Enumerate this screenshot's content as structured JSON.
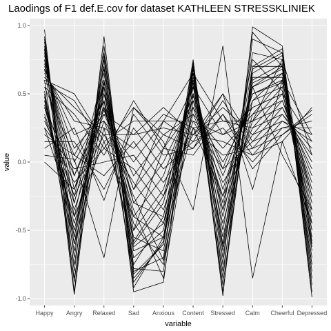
{
  "chart_data": {
    "type": "line",
    "title": "Laodings of F1 def.E.cov for dataset KATHLEEN STRESSKLINIEK",
    "xlabel": "variable",
    "ylabel": "value",
    "categories": [
      "Happy",
      "Angry",
      "Relaxed",
      "Sad",
      "Anxious",
      "Content",
      "Stressed",
      "Calm",
      "Cheerful",
      "Depressed"
    ],
    "ylim": [
      -1.05,
      1.05
    ],
    "yticks": [
      -1.0,
      -0.5,
      0.0,
      0.5,
      1.0
    ],
    "ytick_labels": [
      "-1.0",
      "-0.5",
      "0.0",
      "0.5",
      "1.0"
    ],
    "grid": true,
    "background": "#ebebeb",
    "line_color": "#000000",
    "series": [
      {
        "values": [
          0.97,
          -0.95,
          0.92,
          -0.92,
          -0.55,
          0.75,
          -0.98,
          0.99,
          0.85,
          -0.99
        ]
      },
      {
        "values": [
          0.92,
          -0.8,
          0.85,
          -0.85,
          -0.6,
          0.7,
          -0.85,
          0.9,
          0.8,
          -0.9
        ]
      },
      {
        "values": [
          0.88,
          -0.7,
          0.78,
          -0.8,
          -0.7,
          0.68,
          -0.6,
          0.8,
          0.75,
          -0.8
        ]
      },
      {
        "values": [
          0.85,
          -0.55,
          0.7,
          -0.75,
          -0.4,
          0.65,
          -0.5,
          0.7,
          0.7,
          -0.75
        ]
      },
      {
        "values": [
          0.82,
          -0.4,
          0.6,
          -0.6,
          -0.3,
          0.6,
          -0.4,
          0.6,
          0.72,
          -0.65
        ]
      },
      {
        "values": [
          0.8,
          -0.3,
          0.55,
          -0.5,
          -0.2,
          0.55,
          -0.3,
          0.55,
          0.65,
          -0.55
        ]
      },
      {
        "values": [
          0.78,
          -0.2,
          0.5,
          -0.4,
          -0.1,
          0.5,
          -0.2,
          0.5,
          0.6,
          -0.45
        ]
      },
      {
        "values": [
          0.75,
          -0.1,
          0.45,
          -0.3,
          0.0,
          0.45,
          -0.1,
          0.45,
          0.55,
          -0.35
        ]
      },
      {
        "values": [
          0.72,
          0.0,
          0.4,
          -0.2,
          0.1,
          0.4,
          0.0,
          0.4,
          0.5,
          -0.25
        ]
      },
      {
        "values": [
          0.7,
          0.1,
          0.35,
          -0.1,
          0.2,
          0.35,
          0.1,
          0.35,
          0.45,
          -0.15
        ]
      },
      {
        "values": [
          0.68,
          0.2,
          0.3,
          0.0,
          0.3,
          0.3,
          0.2,
          0.3,
          0.4,
          -0.05
        ]
      },
      {
        "values": [
          0.65,
          0.3,
          0.25,
          0.1,
          0.35,
          0.25,
          0.3,
          0.25,
          0.35,
          0.05
        ]
      },
      {
        "values": [
          0.62,
          0.4,
          0.2,
          0.2,
          0.4,
          0.2,
          0.4,
          0.2,
          0.3,
          0.15
        ]
      },
      {
        "values": [
          0.6,
          0.5,
          0.15,
          0.3,
          0.3,
          0.15,
          0.5,
          0.15,
          0.25,
          0.25
        ]
      },
      {
        "values": [
          0.58,
          0.45,
          0.1,
          0.4,
          0.2,
          0.1,
          0.45,
          0.1,
          0.2,
          0.35
        ]
      },
      {
        "values": [
          0.55,
          0.35,
          0.05,
          0.45,
          0.1,
          0.05,
          0.35,
          0.05,
          0.15,
          0.4
        ]
      },
      {
        "values": [
          0.52,
          -0.6,
          0.65,
          -0.7,
          -0.5,
          0.72,
          -0.7,
          0.65,
          0.78,
          -0.6
        ]
      },
      {
        "values": [
          0.5,
          -0.65,
          0.6,
          -0.65,
          -0.55,
          0.6,
          -0.65,
          0.55,
          0.7,
          -0.7
        ]
      },
      {
        "values": [
          0.48,
          -0.75,
          0.55,
          -0.55,
          -0.65,
          0.55,
          -0.55,
          0.45,
          0.65,
          -0.5
        ]
      },
      {
        "values": [
          0.45,
          -0.5,
          0.5,
          -0.45,
          -0.75,
          0.5,
          -0.45,
          0.35,
          0.6,
          -0.4
        ]
      },
      {
        "values": [
          0.42,
          -0.45,
          0.4,
          -0.35,
          -0.85,
          0.45,
          -0.35,
          0.3,
          0.55,
          -0.3
        ]
      },
      {
        "values": [
          0.4,
          -0.35,
          0.3,
          -0.25,
          -0.72,
          0.4,
          -0.25,
          0.25,
          0.5,
          -0.2
        ]
      },
      {
        "values": [
          0.35,
          -0.25,
          0.2,
          -0.15,
          -0.45,
          0.35,
          -0.15,
          0.2,
          0.45,
          -0.1
        ]
      },
      {
        "values": [
          0.3,
          -0.15,
          0.1,
          -0.05,
          -0.35,
          0.3,
          -0.05,
          0.15,
          0.4,
          0.0
        ]
      },
      {
        "values": [
          0.25,
          -0.05,
          0.0,
          0.05,
          -0.25,
          0.25,
          0.05,
          0.1,
          0.35,
          0.1
        ]
      },
      {
        "values": [
          0.2,
          0.05,
          -0.1,
          0.15,
          -0.15,
          0.2,
          0.15,
          0.05,
          0.3,
          0.2
        ]
      },
      {
        "values": [
          0.15,
          0.15,
          -0.2,
          0.25,
          -0.05,
          0.15,
          0.25,
          0.0,
          0.25,
          0.3
        ]
      },
      {
        "values": [
          0.1,
          0.25,
          -0.28,
          0.35,
          0.05,
          0.1,
          0.35,
          -0.05,
          0.2,
          0.38
        ]
      },
      {
        "values": [
          0.05,
          0.02,
          -0.7,
          0.4,
          0.15,
          -0.35,
          0.85,
          -0.85,
          0.15,
          -0.45
        ]
      },
      {
        "values": [
          0.0,
          -0.2,
          0.35,
          0.2,
          0.25,
          0.2,
          0.5,
          -0.2,
          0.6,
          0.2
        ]
      },
      {
        "values": [
          0.83,
          -0.97,
          0.75,
          -0.95,
          -0.88,
          0.73,
          -0.95,
          0.7,
          0.83,
          -0.95
        ]
      },
      {
        "values": [
          0.6,
          -0.85,
          0.45,
          -0.82,
          -0.6,
          0.65,
          -0.9,
          0.68,
          0.8,
          -0.85
        ]
      },
      {
        "values": [
          0.75,
          -0.6,
          0.25,
          -0.62,
          -0.45,
          0.58,
          -0.8,
          0.62,
          0.62,
          -0.62
        ]
      },
      {
        "values": [
          0.33,
          -0.3,
          0.55,
          -0.88,
          -0.58,
          0.68,
          -0.62,
          0.58,
          0.68,
          -0.58
        ]
      },
      {
        "values": [
          0.45,
          -0.25,
          0.68,
          -0.58,
          -0.25,
          0.48,
          -0.05,
          0.5,
          0.58,
          -0.25
        ]
      },
      {
        "values": [
          0.55,
          0.05,
          0.45,
          -0.5,
          0.1,
          0.55,
          0.2,
          0.4,
          0.5,
          0.15
        ]
      },
      {
        "values": [
          0.25,
          -0.4,
          0.15,
          -0.4,
          -0.55,
          0.25,
          -0.25,
          0.55,
          0.05,
          -0.35
        ]
      },
      {
        "values": [
          0.68,
          -0.55,
          0.58,
          -0.3,
          -0.4,
          0.62,
          -0.35,
          0.75,
          0.52,
          -0.5
        ]
      },
      {
        "values": [
          0.4,
          -0.1,
          0.38,
          -0.2,
          0.3,
          0.65,
          0.3,
          0.3,
          0.75,
          0.05
        ]
      },
      {
        "values": [
          0.9,
          -0.88,
          0.8,
          -0.78,
          -0.8,
          0.7,
          -0.75,
          0.95,
          0.7,
          -0.75
        ]
      }
    ]
  }
}
